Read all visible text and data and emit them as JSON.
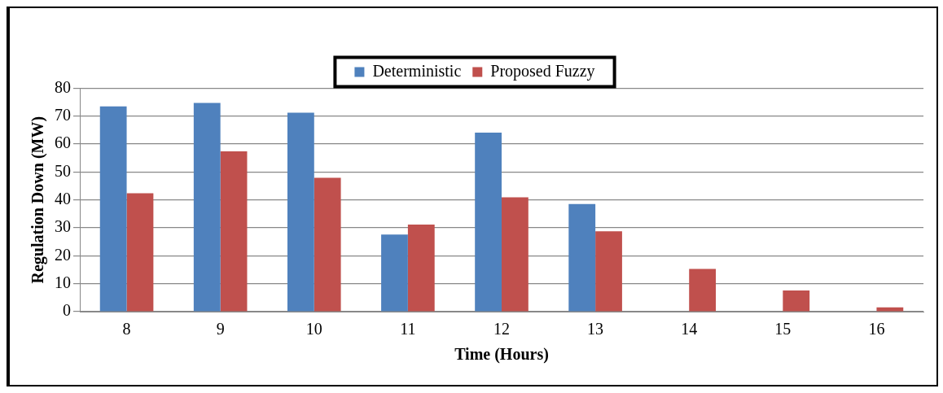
{
  "chart_data": {
    "type": "bar",
    "xlabel": "Time (Hours)",
    "ylabel": "Regulation Down (MW)",
    "categories": [
      "8",
      "9",
      "10",
      "11",
      "12",
      "13",
      "14",
      "15",
      "16"
    ],
    "series": [
      {
        "name": "Deterministic",
        "color": "#4f81bd",
        "values": [
          73.5,
          74.7,
          71.2,
          27.6,
          64.1,
          38.5,
          0,
          0,
          0
        ]
      },
      {
        "name": "Proposed Fuzzy",
        "color": "#c0504d",
        "values": [
          42.4,
          57.4,
          47.9,
          31.2,
          40.9,
          28.8,
          15.3,
          7.6,
          1.5
        ]
      }
    ],
    "ylim": [
      0,
      80
    ],
    "yticks": [
      0,
      10,
      20,
      30,
      40,
      50,
      60,
      70,
      80
    ],
    "grid": "y",
    "legend": "top"
  }
}
